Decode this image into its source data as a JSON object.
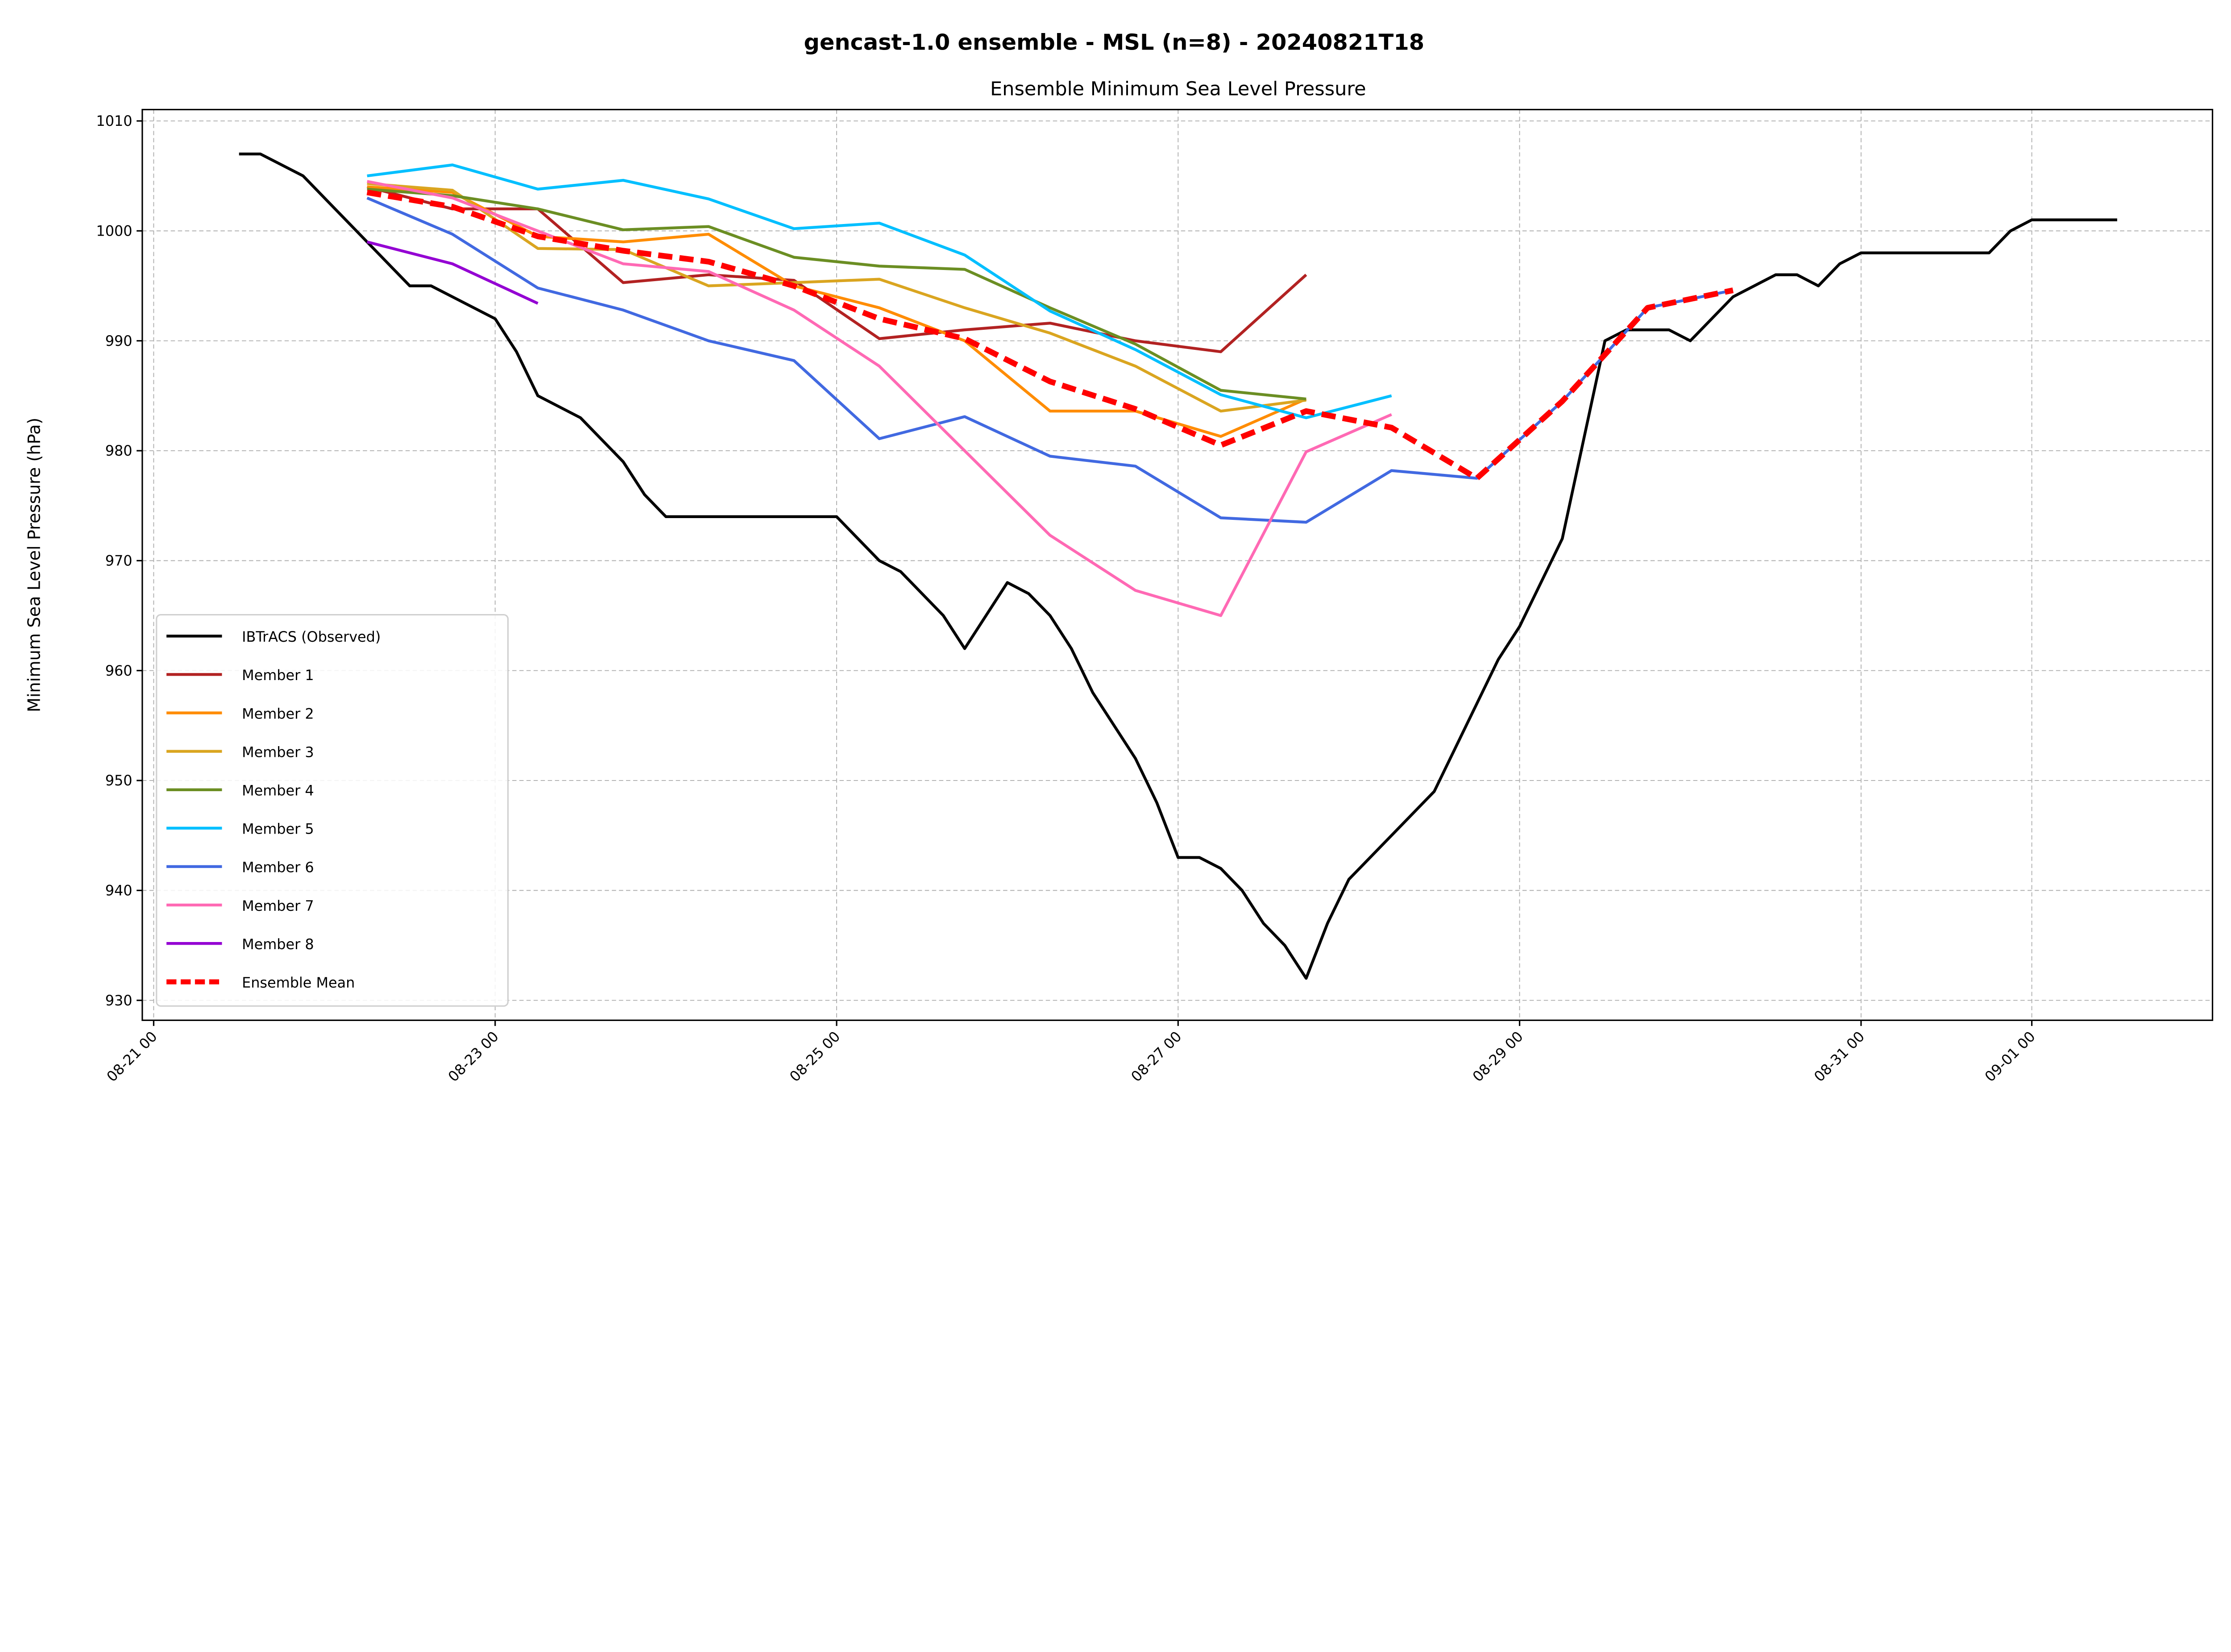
{
  "chart_data": {
    "type": "line",
    "title": "gencast-1.0 ensemble - MSL (n=8) - 20240821T18",
    "subtitle": "Ensemble Minimum Sea Level Pressure",
    "xlabel": "",
    "ylabel": "Minimum Sea Level Pressure (hPa)",
    "xlim": [
      "2024-08-20T22",
      "2024-09-02T06"
    ],
    "ylim": [
      928.9,
      1010.9
    ],
    "xticks": [
      {
        "date": "2024-08-21T00",
        "label": "08-21 00"
      },
      {
        "date": "2024-08-23T00",
        "label": "08-23 00"
      },
      {
        "date": "2024-08-25T00",
        "label": "08-25 00"
      },
      {
        "date": "2024-08-27T00",
        "label": "08-27 00"
      },
      {
        "date": "2024-08-29T00",
        "label": "08-29 00"
      },
      {
        "date": "2024-08-31T00",
        "label": "08-31 00"
      },
      {
        "date": "2024-09-01T00",
        "label": "09-01 00"
      }
    ],
    "yticks": [
      "930",
      "940",
      "950",
      "960",
      "970",
      "980",
      "990",
      "1000",
      "1010"
    ],
    "grid": true,
    "legend_position": "lower-left",
    "forecast_times": [
      "2024-08-22T06",
      "2024-08-22T18",
      "2024-08-23T06",
      "2024-08-23T18",
      "2024-08-24T06",
      "2024-08-24T18",
      "2024-08-25T06",
      "2024-08-25T18",
      "2024-08-26T06",
      "2024-08-26T18",
      "2024-08-27T06",
      "2024-08-27T18",
      "2024-08-28T06",
      "2024-08-28T18",
      "2024-08-29T06",
      "2024-08-29T18",
      "2024-08-30T06"
    ],
    "observed": {
      "name": "IBTrACS (Observed)",
      "color": "#000000",
      "x": [
        "2024-08-21T12",
        "2024-08-21T15",
        "2024-08-21T21",
        "2024-08-22T06",
        "2024-08-22T12",
        "2024-08-22T15",
        "2024-08-23T00",
        "2024-08-23T03",
        "2024-08-23T06",
        "2024-08-23T12",
        "2024-08-23T18",
        "2024-08-23T21",
        "2024-08-24T00",
        "2024-08-25T00",
        "2024-08-25T06",
        "2024-08-25T09",
        "2024-08-25T15",
        "2024-08-25T18",
        "2024-08-26T00",
        "2024-08-26T03",
        "2024-08-26T06",
        "2024-08-26T09",
        "2024-08-26T12",
        "2024-08-26T18",
        "2024-08-26T21",
        "2024-08-27T00",
        "2024-08-27T03",
        "2024-08-27T06",
        "2024-08-27T09",
        "2024-08-27T12",
        "2024-08-27T15",
        "2024-08-27T18",
        "2024-08-27T21",
        "2024-08-28T00",
        "2024-08-28T12",
        "2024-08-28T21",
        "2024-08-29T00",
        "2024-08-29T06",
        "2024-08-29T12",
        "2024-08-29T15",
        "2024-08-29T18",
        "2024-08-29T21",
        "2024-08-30T00",
        "2024-08-30T06",
        "2024-08-30T12",
        "2024-08-30T15",
        "2024-08-30T18",
        "2024-08-30T21",
        "2024-08-31T00",
        "2024-08-31T18",
        "2024-08-31T21",
        "2024-09-01T00",
        "2024-09-01T12"
      ],
      "values": [
        1007,
        1007,
        1005,
        999,
        995,
        995,
        992,
        989,
        985,
        983,
        979,
        976,
        974,
        974,
        970,
        969,
        965,
        962,
        968,
        967,
        965,
        962,
        958,
        952,
        948,
        943,
        943,
        942,
        940,
        937,
        935,
        932,
        937,
        941,
        949,
        961,
        964,
        972,
        990,
        991,
        991,
        991,
        990,
        994,
        996,
        996,
        995,
        997,
        998,
        998,
        1000,
        1001,
        1001
      ]
    },
    "series": [
      {
        "name": "Member 1",
        "color": "#b22222",
        "values": [
          1004,
          1002,
          1002,
          995.3,
          996,
          995.5,
          990.2,
          991,
          991.6,
          990,
          989,
          996
        ]
      },
      {
        "name": "Member 2",
        "color": "#ff8c00",
        "values": [
          1004,
          1003.5,
          999.5,
          999,
          999.7,
          995,
          993,
          990,
          983.6,
          983.6,
          981.3,
          984.7
        ]
      },
      {
        "name": "Member 3",
        "color": "#daa520",
        "values": [
          1004.3,
          1003.7,
          998.4,
          998.3,
          995,
          995.3,
          995.6,
          993,
          990.7,
          987.7,
          983.6,
          984.6
        ]
      },
      {
        "name": "Member 4",
        "color": "#6b8e23",
        "values": [
          1003.8,
          1003.2,
          1002,
          1000.1,
          1000.4,
          997.6,
          996.8,
          996.5,
          993,
          989.7,
          985.5,
          984.7
        ]
      },
      {
        "name": "Member 5",
        "color": "#00bfff",
        "values": [
          1005,
          1006,
          1003.8,
          1004.6,
          1002.9,
          1000.2,
          1000.7,
          997.8,
          992.7,
          989.2,
          985.1,
          983,
          985
        ]
      },
      {
        "name": "Member 6",
        "color": "#4169e1",
        "values": [
          1003,
          999.7,
          994.8,
          992.8,
          990,
          988.2,
          981.1,
          983.1,
          979.5,
          978.6,
          973.9,
          973.5,
          978.2,
          977.5,
          984.5,
          993,
          994.6
        ]
      },
      {
        "name": "Member 7",
        "color": "#ff69b4",
        "values": [
          1004.5,
          1003,
          1000,
          997,
          996.3,
          992.8,
          987.7,
          980,
          972.3,
          967.3,
          965,
          979.9,
          983.3
        ]
      },
      {
        "name": "Member 8",
        "color": "#9400d3",
        "values": [
          999,
          997,
          993.4
        ]
      }
    ],
    "mean": {
      "name": "Ensemble Mean",
      "color": "#ff0000",
      "values": [
        1003.5,
        1002.2,
        999.5,
        998.2,
        997.2,
        995,
        992,
        990.2,
        986.3,
        983.8,
        980.5,
        983.6,
        982.1,
        977.5,
        984.5,
        993,
        994.6
      ]
    }
  }
}
